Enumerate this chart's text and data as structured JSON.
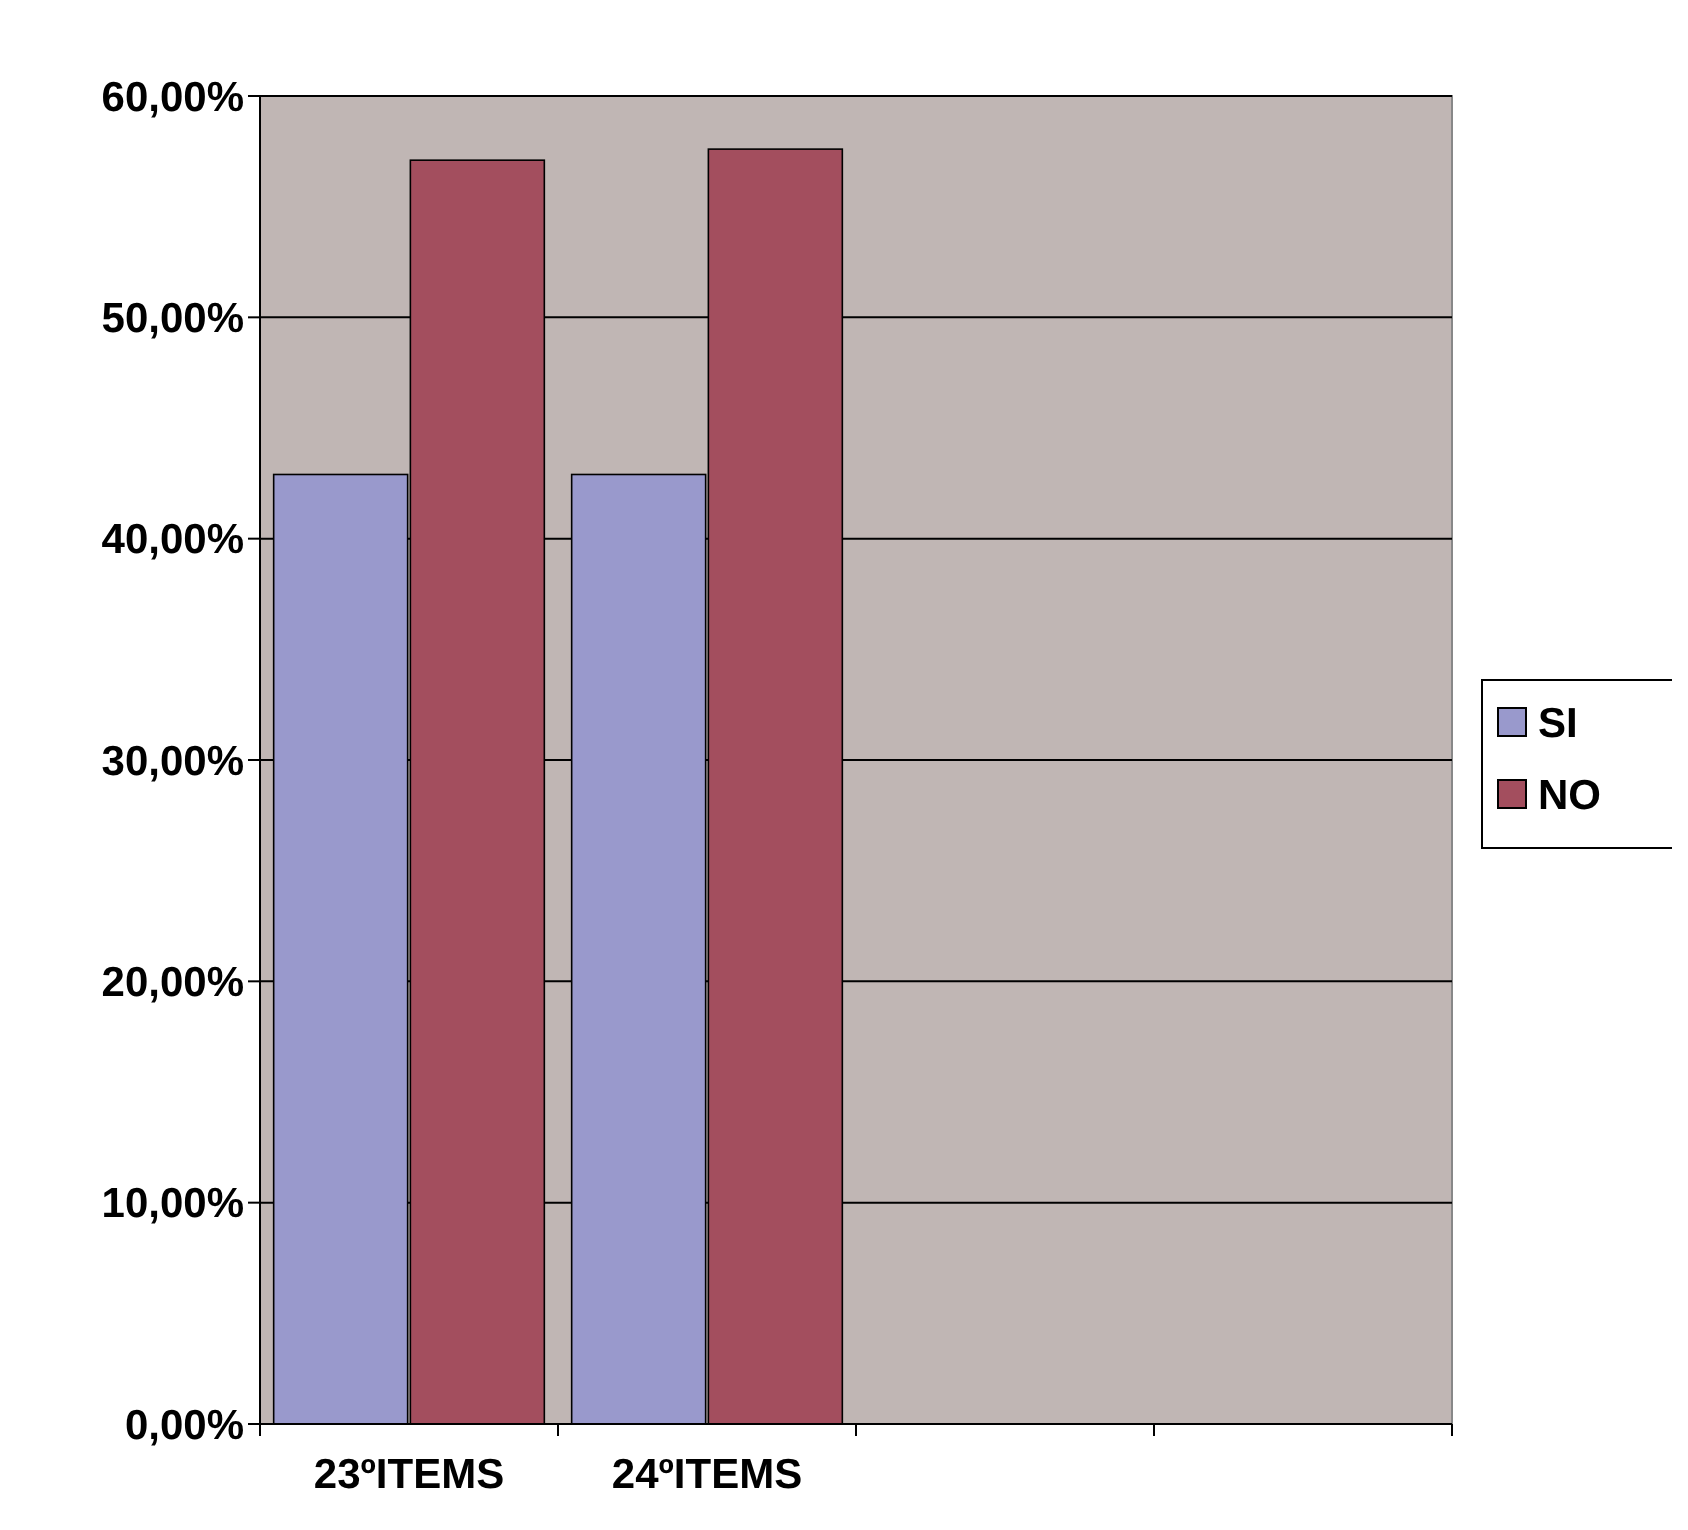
{
  "chart_data": {
    "type": "bar",
    "categories": [
      "23ºITEMS",
      "24ºITEMS",
      null,
      null
    ],
    "series": [
      {
        "name": "SI",
        "color": "#9999cc",
        "values": [
          42.9,
          42.9,
          null,
          null
        ]
      },
      {
        "name": "NO",
        "color": "#a34e5e",
        "values": [
          57.1,
          57.6,
          null,
          null
        ]
      }
    ],
    "ylim": [
      0,
      60
    ],
    "yticks": [
      {
        "value": 0,
        "label": "0,00%"
      },
      {
        "value": 10,
        "label": "10,00%"
      },
      {
        "value": 20,
        "label": "20,00%"
      },
      {
        "value": 30,
        "label": "30,00%"
      },
      {
        "value": 40,
        "label": "40,00%"
      },
      {
        "value": 50,
        "label": "50,00%"
      },
      {
        "value": 60,
        "label": "60,00%"
      }
    ],
    "grid": "y",
    "legend": "right"
  }
}
